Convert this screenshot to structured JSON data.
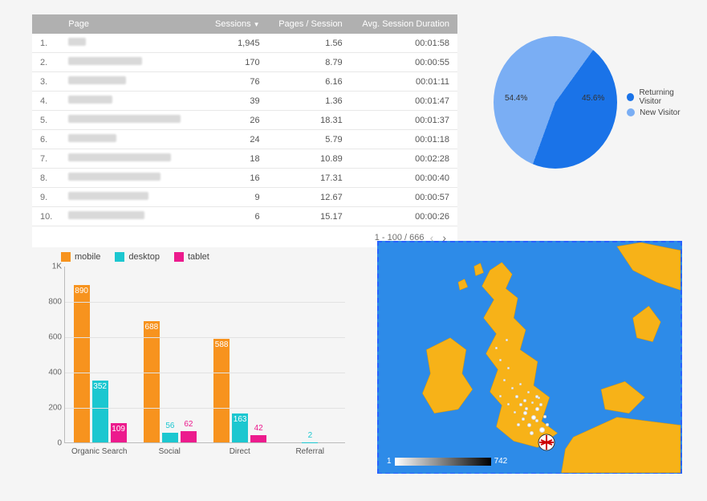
{
  "pages_table": {
    "columns": [
      "",
      "Page",
      "Sessions",
      "Pages / Session",
      "Avg. Session Duration"
    ],
    "sort_column": "Sessions",
    "sort_dir": "desc",
    "rows": [
      {
        "idx": "1.",
        "page_blur_w": 22,
        "sessions": "1,945",
        "pps": "1.56",
        "dur": "00:01:58"
      },
      {
        "idx": "2.",
        "page_blur_w": 92,
        "sessions": "170",
        "pps": "8.79",
        "dur": "00:00:55"
      },
      {
        "idx": "3.",
        "page_blur_w": 72,
        "sessions": "76",
        "pps": "6.16",
        "dur": "00:01:11"
      },
      {
        "idx": "4.",
        "page_blur_w": 55,
        "sessions": "39",
        "pps": "1.36",
        "dur": "00:01:47"
      },
      {
        "idx": "5.",
        "page_blur_w": 140,
        "sessions": "26",
        "pps": "18.31",
        "dur": "00:01:37"
      },
      {
        "idx": "6.",
        "page_blur_w": 60,
        "sessions": "24",
        "pps": "5.79",
        "dur": "00:01:18"
      },
      {
        "idx": "7.",
        "page_blur_w": 128,
        "sessions": "18",
        "pps": "10.89",
        "dur": "00:02:28"
      },
      {
        "idx": "8.",
        "page_blur_w": 115,
        "sessions": "16",
        "pps": "17.31",
        "dur": "00:00:40"
      },
      {
        "idx": "9.",
        "page_blur_w": 100,
        "sessions": "9",
        "pps": "12.67",
        "dur": "00:00:57"
      },
      {
        "idx": "10.",
        "page_blur_w": 95,
        "sessions": "6",
        "pps": "15.17",
        "dur": "00:00:26"
      }
    ],
    "pager_text": "1 - 100 / 666"
  },
  "pie": {
    "slices": [
      {
        "label": "New Visitor",
        "value": 54.4,
        "color": "#7aaef4",
        "display": "54.4%"
      },
      {
        "label": "Returning Visitor",
        "value": 45.6,
        "color": "#1a73e8",
        "display": "45.6%"
      }
    ],
    "legend": [
      {
        "label": "Returning Visitor",
        "color": "#1a73e8"
      },
      {
        "label": "New Visitor",
        "color": "#7aaef4"
      }
    ]
  },
  "bar": {
    "type": "bar",
    "series": [
      {
        "name": "mobile",
        "color": "#f7931e"
      },
      {
        "name": "desktop",
        "color": "#1cc7d0"
      },
      {
        "name": "tablet",
        "color": "#ec1b8d"
      }
    ],
    "categories": [
      "Organic Search",
      "Social",
      "Direct",
      "Referral"
    ],
    "data": {
      "mobile": [
        890,
        688,
        588,
        null
      ],
      "desktop": [
        352,
        56,
        163,
        2
      ],
      "tablet": [
        109,
        62,
        42,
        null
      ]
    },
    "ylim": [
      0,
      1000
    ],
    "y_ticks": [
      0,
      200,
      400,
      600,
      800
    ],
    "y_top_label": "1K",
    "background": "#f5f5f5",
    "grid_color": "#e2e2e2",
    "label_fontsize": 10
  },
  "map": {
    "background": "#2d8be8",
    "land_color": "#f7b218",
    "border_color": "#2962ff",
    "scale_min": "1",
    "scale_max": "742",
    "menu_glyph": "⋮"
  }
}
